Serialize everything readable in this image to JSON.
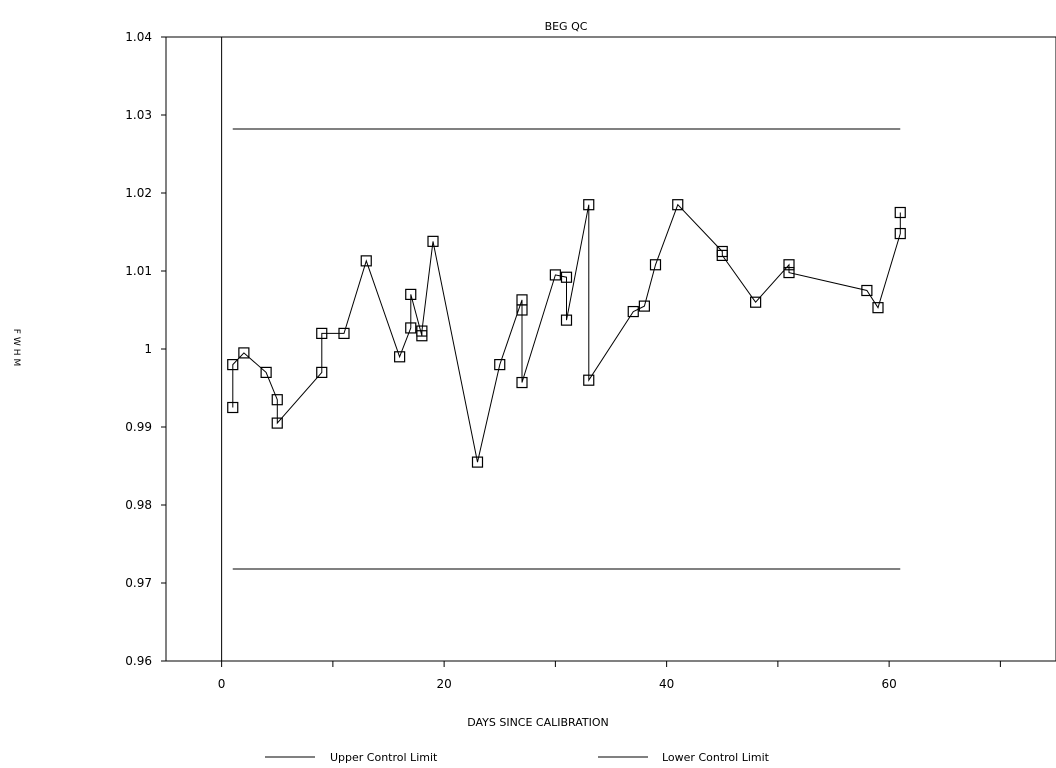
{
  "chart_data": {
    "type": "line",
    "title": "BEG QC",
    "xlabel": "DAYS SINCE CALIBRATION",
    "ylabel": "FWHM",
    "xlim": [
      -5,
      75
    ],
    "ylim": [
      0.96,
      1.04
    ],
    "x_ticks": [
      0,
      20,
      40,
      60
    ],
    "y_ticks": [
      0.96,
      0.97,
      0.98,
      0.99,
      1,
      1.01,
      1.02,
      1.03,
      1.04
    ],
    "y_tick_labels": [
      "0.96",
      "0.97",
      "0.98",
      "0.99",
      "1",
      "1.01",
      "1.02",
      "1.03",
      "1.04"
    ],
    "grid": false,
    "legend": {
      "placement": "bottom",
      "entries": [
        "Upper Control Limit",
        "Lower Control Limit"
      ]
    },
    "series": [
      {
        "marker": "square",
        "x": [
          1,
          1,
          2,
          4,
          5,
          5,
          9,
          9,
          11,
          13,
          16,
          17,
          17,
          18,
          18,
          19,
          23,
          25,
          27,
          27,
          27,
          30,
          31,
          31,
          33,
          33,
          37,
          38,
          39,
          41,
          45,
          45,
          48,
          51,
          51,
          58,
          59,
          61,
          61
        ],
        "y": [
          0.9925,
          0.998,
          0.9995,
          0.997,
          0.9935,
          0.9905,
          0.997,
          1.002,
          1.002,
          1.0113,
          0.999,
          1.0027,
          1.007,
          1.0017,
          1.0023,
          1.0138,
          0.9855,
          0.998,
          1.0063,
          1.005,
          0.9957,
          1.0095,
          1.0092,
          1.0037,
          1.0185,
          0.996,
          1.0048,
          1.0055,
          1.0108,
          1.0185,
          1.0125,
          1.012,
          1.006,
          1.0108,
          1.0098,
          1.0075,
          1.0053,
          1.0148,
          1.0175
        ]
      },
      {
        "name": "Upper Control Limit",
        "x": [
          1,
          61
        ],
        "y": [
          1.0282,
          1.0282
        ]
      },
      {
        "name": "Lower Control Limit",
        "x": [
          1,
          61
        ],
        "y": [
          0.9718,
          0.9718
        ]
      }
    ]
  }
}
